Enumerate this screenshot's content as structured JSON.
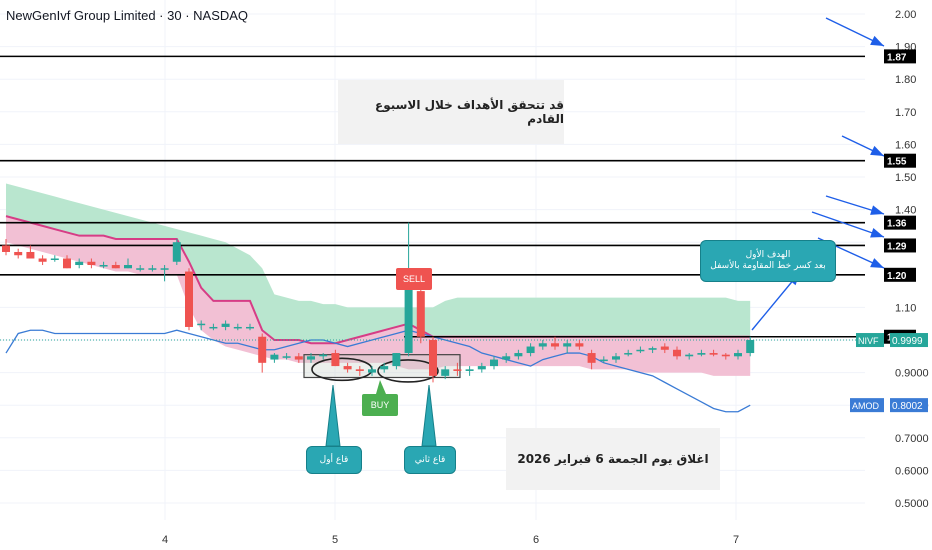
{
  "header": {
    "title": "NewGenIvf Group Limited · 30 · NASDAQ"
  },
  "annotations": {
    "top_note": "قد  تتحقق الأهداف خلال الاسبوع القادم",
    "close_note": "اغلاق يوم الجمعة     6   فبراير  2026",
    "target_line1": "الهدف الأول",
    "target_line2": "بعد كسر خط المقاومة بالأسفل",
    "first_low": "قاع أول",
    "second_low": "قاع ثاني",
    "sell_label": "SELL",
    "buy_label": "BUY"
  },
  "colors": {
    "up": "#26a69a",
    "down": "#ef5350",
    "cloud_green": "#b9e6cf",
    "cloud_red": "#f2c0d4",
    "ma_pink": "#d63d86",
    "amod_blue": "#3a7bd5",
    "arrow_blue": "#1e5ee8",
    "level_line": "#000000"
  },
  "chart_data": {
    "type": "candlestick",
    "title": "NewGenIvf Group Limited · 30 · NASDAQ",
    "x_tick_labels": [
      "4",
      "5",
      "6",
      "7"
    ],
    "y_tick_labels": [
      "2.00",
      "1.90",
      "1.80",
      "1.70",
      "1.60",
      "1.50",
      "1.40",
      "1.30",
      "1.20",
      "1.10",
      "1.00",
      "0.9000",
      "0.8000",
      "0.7000",
      "0.6000",
      "0.5000"
    ],
    "ylim": [
      0.47,
      2.03
    ],
    "grid": true,
    "horizontal_levels": [
      1.87,
      1.55,
      1.36,
      1.29,
      1.2,
      1.01
    ],
    "price_labels": [
      {
        "name": "NIVF",
        "value": "0.9999"
      },
      {
        "name": "AMOD",
        "value": "0.8002"
      }
    ],
    "candles": [
      {
        "o": 1.29,
        "h": 1.31,
        "l": 1.26,
        "c": 1.27
      },
      {
        "o": 1.27,
        "h": 1.28,
        "l": 1.25,
        "c": 1.26
      },
      {
        "o": 1.27,
        "h": 1.29,
        "l": 1.25,
        "c": 1.25
      },
      {
        "o": 1.25,
        "h": 1.26,
        "l": 1.23,
        "c": 1.24
      },
      {
        "o": 1.25,
        "h": 1.26,
        "l": 1.24,
        "c": 1.25
      },
      {
        "o": 1.25,
        "h": 1.26,
        "l": 1.22,
        "c": 1.22
      },
      {
        "o": 1.23,
        "h": 1.25,
        "l": 1.22,
        "c": 1.24
      },
      {
        "o": 1.24,
        "h": 1.25,
        "l": 1.22,
        "c": 1.23
      },
      {
        "o": 1.23,
        "h": 1.24,
        "l": 1.22,
        "c": 1.23
      },
      {
        "o": 1.23,
        "h": 1.24,
        "l": 1.22,
        "c": 1.22
      },
      {
        "o": 1.22,
        "h": 1.25,
        "l": 1.22,
        "c": 1.23
      },
      {
        "o": 1.22,
        "h": 1.23,
        "l": 1.21,
        "c": 1.22
      },
      {
        "o": 1.22,
        "h": 1.23,
        "l": 1.21,
        "c": 1.22
      },
      {
        "o": 1.22,
        "h": 1.23,
        "l": 1.18,
        "c": 1.22
      },
      {
        "o": 1.24,
        "h": 1.31,
        "l": 1.23,
        "c": 1.3
      },
      {
        "o": 1.21,
        "h": 1.22,
        "l": 1.03,
        "c": 1.04
      },
      {
        "o": 1.05,
        "h": 1.06,
        "l": 1.03,
        "c": 1.05
      },
      {
        "o": 1.04,
        "h": 1.05,
        "l": 1.03,
        "c": 1.04
      },
      {
        "o": 1.04,
        "h": 1.06,
        "l": 1.03,
        "c": 1.05
      },
      {
        "o": 1.04,
        "h": 1.05,
        "l": 1.03,
        "c": 1.04
      },
      {
        "o": 1.04,
        "h": 1.05,
        "l": 1.03,
        "c": 1.04
      },
      {
        "o": 1.01,
        "h": 1.02,
        "l": 0.9,
        "c": 0.93
      },
      {
        "o": 0.94,
        "h": 0.96,
        "l": 0.93,
        "c": 0.955
      },
      {
        "o": 0.95,
        "h": 0.96,
        "l": 0.94,
        "c": 0.95
      },
      {
        "o": 0.95,
        "h": 0.96,
        "l": 0.93,
        "c": 0.94
      },
      {
        "o": 0.94,
        "h": 0.96,
        "l": 0.93,
        "c": 0.95
      },
      {
        "o": 0.95,
        "h": 0.96,
        "l": 0.94,
        "c": 0.955
      },
      {
        "o": 0.96,
        "h": 0.97,
        "l": 0.92,
        "c": 0.92
      },
      {
        "o": 0.92,
        "h": 0.93,
        "l": 0.9,
        "c": 0.91
      },
      {
        "o": 0.91,
        "h": 0.92,
        "l": 0.89,
        "c": 0.905
      },
      {
        "o": 0.9,
        "h": 0.92,
        "l": 0.89,
        "c": 0.91
      },
      {
        "o": 0.91,
        "h": 0.93,
        "l": 0.9,
        "c": 0.92
      },
      {
        "o": 0.92,
        "h": 0.96,
        "l": 0.91,
        "c": 0.96
      },
      {
        "o": 0.96,
        "h": 1.36,
        "l": 0.95,
        "c": 1.19
      },
      {
        "o": 1.15,
        "h": 1.16,
        "l": 0.99,
        "c": 1.01
      },
      {
        "o": 1.0,
        "h": 1.01,
        "l": 0.87,
        "c": 0.89
      },
      {
        "o": 0.89,
        "h": 0.92,
        "l": 0.88,
        "c": 0.91
      },
      {
        "o": 0.91,
        "h": 0.93,
        "l": 0.89,
        "c": 0.905
      },
      {
        "o": 0.905,
        "h": 0.92,
        "l": 0.89,
        "c": 0.91
      },
      {
        "o": 0.91,
        "h": 0.93,
        "l": 0.9,
        "c": 0.92
      },
      {
        "o": 0.92,
        "h": 0.95,
        "l": 0.91,
        "c": 0.94
      },
      {
        "o": 0.94,
        "h": 0.96,
        "l": 0.93,
        "c": 0.95
      },
      {
        "o": 0.95,
        "h": 0.97,
        "l": 0.94,
        "c": 0.96
      },
      {
        "o": 0.96,
        "h": 0.99,
        "l": 0.95,
        "c": 0.98
      },
      {
        "o": 0.98,
        "h": 1.0,
        "l": 0.97,
        "c": 0.99
      },
      {
        "o": 0.99,
        "h": 1.01,
        "l": 0.97,
        "c": 0.98
      },
      {
        "o": 0.98,
        "h": 1.0,
        "l": 0.96,
        "c": 0.99
      },
      {
        "o": 0.99,
        "h": 1.0,
        "l": 0.97,
        "c": 0.98
      },
      {
        "o": 0.96,
        "h": 0.97,
        "l": 0.91,
        "c": 0.93
      },
      {
        "o": 0.94,
        "h": 0.95,
        "l": 0.93,
        "c": 0.94
      },
      {
        "o": 0.94,
        "h": 0.96,
        "l": 0.93,
        "c": 0.95
      },
      {
        "o": 0.96,
        "h": 0.97,
        "l": 0.95,
        "c": 0.96
      },
      {
        "o": 0.97,
        "h": 0.98,
        "l": 0.96,
        "c": 0.97
      },
      {
        "o": 0.97,
        "h": 0.98,
        "l": 0.96,
        "c": 0.975
      },
      {
        "o": 0.98,
        "h": 0.99,
        "l": 0.96,
        "c": 0.97
      },
      {
        "o": 0.97,
        "h": 0.98,
        "l": 0.94,
        "c": 0.95
      },
      {
        "o": 0.95,
        "h": 0.96,
        "l": 0.94,
        "c": 0.955
      },
      {
        "o": 0.955,
        "h": 0.97,
        "l": 0.95,
        "c": 0.96
      },
      {
        "o": 0.96,
        "h": 0.97,
        "l": 0.95,
        "c": 0.955
      },
      {
        "o": 0.955,
        "h": 0.96,
        "l": 0.94,
        "c": 0.95
      },
      {
        "o": 0.95,
        "h": 0.97,
        "l": 0.94,
        "c": 0.96
      },
      {
        "o": 0.96,
        "h": 1.01,
        "l": 0.95,
        "c": 1.0
      }
    ],
    "cloud_top": [
      1.48,
      1.47,
      1.46,
      1.45,
      1.44,
      1.43,
      1.42,
      1.41,
      1.4,
      1.39,
      1.38,
      1.37,
      1.36,
      1.35,
      1.34,
      1.33,
      1.32,
      1.31,
      1.3,
      1.28,
      1.26,
      1.22,
      1.14,
      1.13,
      1.12,
      1.12,
      1.11,
      1.11,
      1.1,
      1.1,
      1.1,
      1.1,
      1.1,
      1.1,
      1.1,
      1.1,
      1.12,
      1.13,
      1.13,
      1.13,
      1.13,
      1.13,
      1.13,
      1.13,
      1.13,
      1.13,
      1.13,
      1.13,
      1.13,
      1.13,
      1.13,
      1.13,
      1.13,
      1.13,
      1.13,
      1.13,
      1.13,
      1.13,
      1.13,
      1.13,
      1.12,
      1.12
    ],
    "cloud_mid": [
      1.38,
      1.37,
      1.36,
      1.35,
      1.34,
      1.33,
      1.32,
      1.32,
      1.32,
      1.31,
      1.31,
      1.31,
      1.31,
      1.31,
      1.31,
      1.24,
      1.16,
      1.12,
      1.12,
      1.12,
      1.12,
      1.03,
      1.0,
      1.0,
      1.0,
      0.99,
      0.99,
      0.99,
      1.0,
      1.01,
      1.02,
      1.03,
      1.04,
      1.05,
      1.03,
      1.01,
      1.01,
      1.01,
      1.01,
      1.01,
      1.01,
      1.01,
      1.01,
      1.01,
      1.01,
      1.01,
      1.01,
      1.01,
      1.01,
      1.01,
      1.01,
      1.01,
      1.01,
      1.01,
      1.01,
      1.01,
      1.01,
      1.01,
      1.01,
      1.01,
      1.01,
      1.01
    ],
    "cloud_bottom": [
      1.3,
      1.29,
      1.28,
      1.27,
      1.26,
      1.25,
      1.24,
      1.23,
      1.22,
      1.21,
      1.21,
      1.2,
      1.2,
      1.2,
      1.2,
      1.1,
      1.03,
      1.0,
      0.98,
      0.97,
      0.96,
      0.95,
      0.94,
      0.94,
      0.93,
      0.93,
      0.93,
      0.93,
      0.93,
      0.93,
      0.93,
      0.93,
      0.92,
      0.91,
      0.91,
      0.91,
      0.92,
      0.92,
      0.92,
      0.92,
      0.92,
      0.92,
      0.92,
      0.92,
      0.92,
      0.92,
      0.92,
      0.92,
      0.91,
      0.91,
      0.91,
      0.91,
      0.9,
      0.9,
      0.9,
      0.9,
      0.9,
      0.9,
      0.89,
      0.89,
      0.89,
      0.89
    ],
    "amod_series": [
      0.96,
      1.02,
      1.03,
      1.03,
      1.02,
      1.02,
      1.02,
      1.02,
      1.02,
      1.02,
      1.02,
      1.02,
      1.02,
      1.02,
      1.03,
      1.02,
      1.01,
      1.0,
      0.99,
      0.99,
      0.98,
      0.97,
      0.97,
      0.98,
      0.99,
      1.0,
      1.0,
      0.99,
      0.98,
      0.99,
      1.0,
      1.01,
      1.02,
      1.03,
      1.02,
      1.01,
      1.0,
      0.99,
      0.98,
      0.96,
      0.95,
      0.94,
      0.93,
      0.92,
      0.94,
      0.95,
      0.96,
      0.96,
      0.95,
      0.93,
      0.92,
      0.91,
      0.9,
      0.89,
      0.87,
      0.85,
      0.83,
      0.81,
      0.79,
      0.78,
      0.78,
      0.8
    ]
  }
}
